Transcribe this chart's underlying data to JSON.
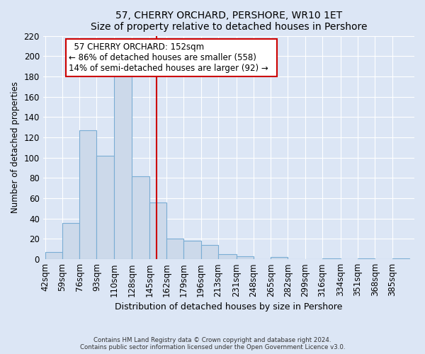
{
  "title": "57, CHERRY ORCHARD, PERSHORE, WR10 1ET",
  "subtitle": "Size of property relative to detached houses in Pershore",
  "xlabel": "Distribution of detached houses by size in Pershore",
  "ylabel": "Number of detached properties",
  "bar_labels": [
    "42sqm",
    "59sqm",
    "76sqm",
    "93sqm",
    "110sqm",
    "128sqm",
    "145sqm",
    "162sqm",
    "179sqm",
    "196sqm",
    "213sqm",
    "231sqm",
    "248sqm",
    "265sqm",
    "282sqm",
    "299sqm",
    "316sqm",
    "334sqm",
    "351sqm",
    "368sqm",
    "385sqm"
  ],
  "bar_values": [
    7,
    36,
    127,
    102,
    181,
    82,
    56,
    20,
    18,
    14,
    5,
    3,
    0,
    2,
    0,
    0,
    1,
    0,
    1,
    0,
    1
  ],
  "bar_color": "#ccd9ea",
  "bar_edge_color": "#7aadd4",
  "marker_line_color": "#cc0000",
  "ylim": [
    0,
    220
  ],
  "yticks": [
    0,
    20,
    40,
    60,
    80,
    100,
    120,
    140,
    160,
    180,
    200,
    220
  ],
  "annotation_title": "57 CHERRY ORCHARD: 152sqm",
  "annotation_line1": "← 86% of detached houses are smaller (558)",
  "annotation_line2": "14% of semi-detached houses are larger (92) →",
  "annotation_box_color": "#ffffff",
  "annotation_box_edge": "#cc0000",
  "footer_line1": "Contains HM Land Registry data © Crown copyright and database right 2024.",
  "footer_line2": "Contains public sector information licensed under the Open Government Licence v3.0.",
  "background_color": "#dce6f5",
  "plot_bg_color": "#dce6f5",
  "grid_color": "#ffffff"
}
